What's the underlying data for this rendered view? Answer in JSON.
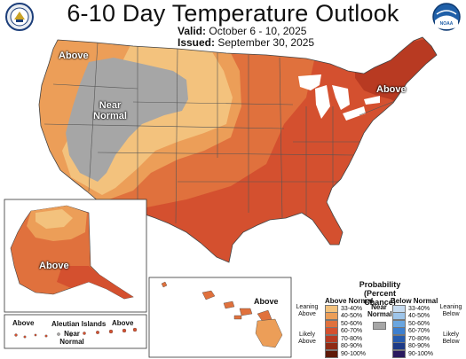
{
  "header": {
    "title": "6-10 Day Temperature Outlook",
    "valid_label": "Valid:",
    "valid_value": "October 6 - 10, 2025",
    "issued_label": "Issued:",
    "issued_value": "September 30, 2025"
  },
  "map_labels": {
    "conus_west_above": "Above",
    "conus_near_normal_1": "Near",
    "conus_near_normal_2": "Normal",
    "conus_northeast_above": "Above",
    "alaska_above": "Above",
    "hawaii_above": "Above",
    "aleutian_title": "Aleutian Islands",
    "aleutian_above": "Above",
    "aleutian_near_1": "Near",
    "aleutian_near_2": "Normal"
  },
  "legend": {
    "title_line1": "Probability",
    "title_line2": "(Percent Chance)",
    "above_title": "Above Normal",
    "below_title": "Below Normal",
    "near_title_1": "Near",
    "near_title_2": "Normal",
    "leaning_above_1": "Leaning",
    "leaning_above_2": "Above",
    "likely_above_1": "Likely",
    "likely_above_2": "Above",
    "leaning_below_1": "Leaning",
    "leaning_below_2": "Below",
    "likely_below_1": "Likely",
    "likely_below_2": "Below",
    "above_rows": [
      {
        "label": "33-40%",
        "color": "#f3c27d"
      },
      {
        "label": "40-50%",
        "color": "#ec9e58"
      },
      {
        "label": "50-60%",
        "color": "#e0713d"
      },
      {
        "label": "60-70%",
        "color": "#d4502f"
      },
      {
        "label": "70-80%",
        "color": "#b83a22"
      },
      {
        "label": "80-90%",
        "color": "#8f2a14"
      },
      {
        "label": "90-100%",
        "color": "#5e1a08"
      }
    ],
    "below_rows": [
      {
        "label": "33-40%",
        "color": "#c6dbf0"
      },
      {
        "label": "40-50%",
        "color": "#9ec5ea"
      },
      {
        "label": "50-60%",
        "color": "#6aa6e0"
      },
      {
        "label": "60-70%",
        "color": "#3d7fcf"
      },
      {
        "label": "70-80%",
        "color": "#255aae"
      },
      {
        "label": "80-90%",
        "color": "#1d3a86"
      },
      {
        "label": "90-100%",
        "color": "#2a1a5e"
      }
    ],
    "near_color": "#a6a6a6"
  },
  "colors": {
    "near_normal": "#a6a6a6",
    "above_33_40": "#f3c27d",
    "above_40_50": "#ec9e58",
    "above_50_60": "#e0713d",
    "above_60_70": "#d4502f",
    "above_70_80": "#b83a22"
  },
  "icons": [
    "doc-seal-icon",
    "noaa-logo-icon"
  ]
}
